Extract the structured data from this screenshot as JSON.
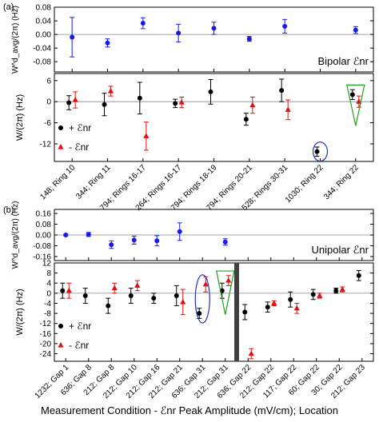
{
  "page": {
    "footer_xlabel": "Measurement Condition -  ℰnr Peak Amplitude (mV/cm); Location"
  },
  "chart_data": [
    {
      "type": "scatter",
      "panel": "(a)",
      "subpanel": "top",
      "ylabel": "W^d_avg/(2π) (Hz)",
      "box_label": "Bipolar ℰnr",
      "ylim": [
        -0.11,
        0.08
      ],
      "yticks": [
        -0.08,
        -0.04,
        0.0,
        0.04,
        0.08
      ],
      "yticklabels": [
        "-0.08",
        "-0.04",
        "0.00",
        "0.04",
        "0.08"
      ],
      "zero_line": true,
      "categories": [
        "148; Ring 10",
        "344; Ring 11",
        "794; Rings 16-17",
        "264; Rings 16-17",
        "794; Rings 18-19",
        "794; Rings 20-21",
        "528; Rings 30-31",
        "1030;  Ring 22",
        "344; Ring 22"
      ],
      "series": [
        {
          "marker": "circle",
          "color": "#1a1ae6",
          "values": [
            -0.008,
            -0.025,
            0.033,
            0.004,
            0.018,
            -0.013,
            0.024,
            null,
            0.013
          ],
          "errors": [
            0.058,
            0.012,
            0.016,
            0.026,
            0.018,
            0.007,
            0.02,
            null,
            0.01
          ]
        }
      ]
    },
    {
      "type": "scatter",
      "panel": "(a)",
      "subpanel": "bottom",
      "ylabel": "W/(2π) (Hz)",
      "ylim": [
        -17,
        8
      ],
      "yticks": [
        -12,
        -6,
        0,
        6
      ],
      "yticklabels": [
        "-12",
        "-6",
        "0",
        "6"
      ],
      "zero_line": true,
      "categories": [
        "148; Ring 10",
        "344; Ring 11",
        "794; Rings 16-17",
        "264; Rings 16-17",
        "794; Rings 18-19",
        "794; Rings 20-21",
        "528; Rings 30-31",
        "1030;  Ring 22",
        "344; Ring 22"
      ],
      "legend": [
        {
          "symbol": "●",
          "label": "+ ℰnr",
          "color": "#000000"
        },
        {
          "symbol": "▲",
          "label": "- ℰnr",
          "color": "#e01010"
        }
      ],
      "series": [
        {
          "name": "+ ℰnr",
          "marker": "circle",
          "color": "#000000",
          "values": [
            -0.3,
            -0.8,
            1.0,
            -0.5,
            2.8,
            -5.0,
            3.2,
            -14.2,
            2.0
          ],
          "errors": [
            2.0,
            3.2,
            4.5,
            1.2,
            3.5,
            1.7,
            3.2,
            1.3,
            1.4
          ]
        },
        {
          "name": "- ℰnr",
          "marker": "triangle",
          "color": "#e01010",
          "values": [
            0.5,
            3.0,
            -9.8,
            -0.2,
            null,
            -1.0,
            -2.3,
            null,
            0.0
          ],
          "errors": [
            2.3,
            1.4,
            4.0,
            1.5,
            null,
            2.3,
            2.8,
            null,
            1.6
          ]
        }
      ],
      "annotations": [
        {
          "shape": "ellipse",
          "color": "#2030c0",
          "category_index": 7
        },
        {
          "shape": "triangle",
          "color": "#20a020",
          "category_index": 8
        }
      ]
    },
    {
      "type": "scatter",
      "panel": "(b)",
      "subpanel": "top",
      "ylabel": "W^d_avg/(2π) (Hz)",
      "box_label": "Unipolar ℰnr",
      "ylim": [
        -0.19,
        0.19
      ],
      "yticks": [
        -0.16,
        -0.08,
        0.0,
        0.08,
        0.16
      ],
      "yticklabels": [
        "-0.16",
        "-0.08",
        "0.00",
        "0.08",
        "0.16"
      ],
      "zero_line": true,
      "categories": [
        "1232; Gap 1",
        "636; Gap 8",
        "212; Gap 8",
        "212; Gap 10",
        "212; Gap 16",
        "212; Gap 21",
        "636; Gap 31",
        "212; Gap 31",
        "636; Gap 22",
        "212; Gap 22",
        "117; Gap 22",
        "60; Gap 22",
        "30; Gap 22",
        "212; Gap 23"
      ],
      "series": [
        {
          "marker": "circle",
          "color": "#1a1ae6",
          "values": [
            0.0,
            0.004,
            -0.072,
            -0.038,
            -0.043,
            0.025,
            null,
            -0.052,
            null,
            null,
            null,
            null,
            null,
            null
          ],
          "errors": [
            0.006,
            0.015,
            0.028,
            0.03,
            0.038,
            0.065,
            null,
            0.024,
            null,
            null,
            null,
            null,
            null,
            null
          ]
        }
      ]
    },
    {
      "type": "scatter",
      "panel": "(b)",
      "subpanel": "bottom",
      "ylabel": "W/(2π) (Hz)",
      "ylim": [
        -27,
        12
      ],
      "yticks": [
        -24,
        -20,
        -16,
        -12,
        -8,
        -4,
        0,
        4,
        8,
        12
      ],
      "yticklabels": [
        "-24",
        "-20",
        "-16",
        "-12",
        "-8",
        "-4",
        "0",
        "4",
        "8",
        "12"
      ],
      "zero_line": true,
      "categories": [
        "1232; Gap 1",
        "636; Gap 8",
        "212; Gap 8",
        "212; Gap 10",
        "212; Gap 16",
        "212; Gap 21",
        "636; Gap 31",
        "212; Gap 31",
        "636; Gap 22",
        "212; Gap 22",
        "117; Gap 22",
        "60; Gap 22",
        "30; Gap 22",
        "212; Gap 23"
      ],
      "legend": [
        {
          "symbol": "●",
          "label": "+ ℰnr",
          "color": "#000000"
        },
        {
          "symbol": "▲",
          "label": "- ℰnr",
          "color": "#e01010"
        }
      ],
      "series": [
        {
          "name": "+ ℰnr",
          "marker": "circle",
          "color": "#000000",
          "values": [
            1.0,
            -1.0,
            -5.0,
            -1.0,
            -2.0,
            -1.0,
            -8.0,
            1.0,
            -7.5,
            -5.5,
            -2.5,
            -0.5,
            1.0,
            7.0
          ],
          "errors": [
            3.0,
            3.0,
            3.0,
            3.0,
            2.0,
            4.0,
            2.0,
            3.0,
            3.0,
            2.0,
            3.0,
            2.0,
            1.0,
            2.0
          ]
        },
        {
          "name": "- ℰnr",
          "marker": "triangle",
          "color": "#e01010",
          "values": [
            1.0,
            null,
            2.0,
            3.0,
            null,
            -3.5,
            3.5,
            5.0,
            -24.0,
            -4.0,
            -6.0,
            -1.0,
            1.5,
            null
          ],
          "errors": [
            3.0,
            null,
            2.0,
            2.0,
            null,
            5.0,
            3.0,
            2.0,
            2.0,
            1.0,
            2.0,
            1.0,
            1.0,
            null
          ]
        }
      ],
      "annotations": [
        {
          "shape": "ellipse",
          "color": "#2030c0",
          "category_index": 6
        },
        {
          "shape": "triangle",
          "color": "#20a020",
          "category_index": 7
        },
        {
          "shape": "divider_bar",
          "color": "#404040",
          "between_categories": [
            7,
            8
          ]
        }
      ]
    }
  ]
}
